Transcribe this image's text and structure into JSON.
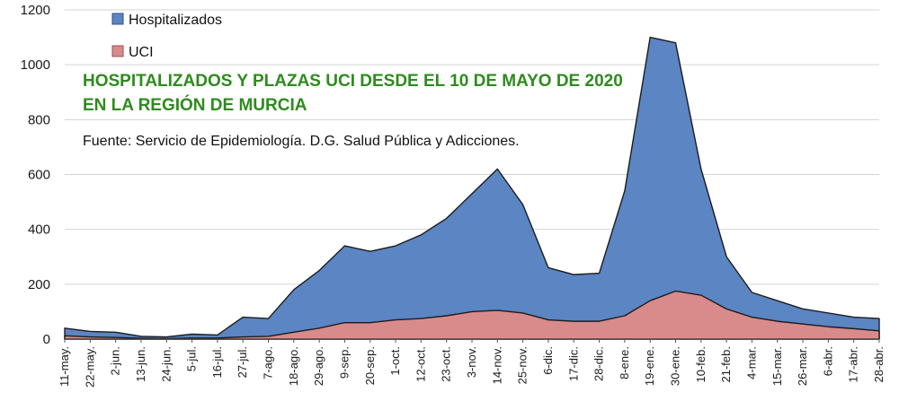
{
  "chart_data": {
    "type": "area",
    "title_lines": [
      "HOSPITALIZADOS Y PLAZAS UCI DESDE EL 10 DE MAYO DE 2020",
      "EN LA REGIÓN DE MURCIA"
    ],
    "source": "Fuente: Servicio de Epidemiología. D.G. Salud Pública y Adicciones.",
    "xlabel": "",
    "ylabel": "",
    "ylim": [
      0,
      1200
    ],
    "yticks": [
      0,
      200,
      400,
      600,
      800,
      1000,
      1200
    ],
    "grid": true,
    "legend": "top-left",
    "categories": [
      "11-may.",
      "22-may.",
      "2-jun.",
      "13-jun.",
      "24-jun.",
      "5-jul.",
      "16-jul.",
      "27-jul.",
      "7-ago.",
      "18-ago.",
      "29-ago.",
      "9-sep.",
      "20-sep.",
      "1-oct.",
      "12-oct.",
      "23-oct.",
      "3-nov.",
      "14-nov.",
      "25-nov.",
      "6-dic.",
      "17-dic.",
      "28-dic.",
      "8-ene.",
      "19-ene.",
      "30-ene.",
      "10-feb.",
      "21-feb.",
      "4-mar.",
      "15-mar.",
      "26-mar.",
      "6-abr.",
      "17-abr.",
      "28-abr."
    ],
    "series": [
      {
        "name": "Hospitalizados",
        "color": "#5b85c3",
        "values": [
          40,
          28,
          25,
          10,
          8,
          18,
          15,
          80,
          75,
          180,
          250,
          340,
          320,
          340,
          380,
          440,
          530,
          620,
          490,
          260,
          235,
          240,
          540,
          1100,
          1080,
          620,
          300,
          170,
          140,
          110,
          95,
          80,
          75
        ]
      },
      {
        "name": "UCI",
        "color": "#d98a8a",
        "values": [
          12,
          8,
          6,
          3,
          2,
          4,
          4,
          8,
          10,
          25,
          40,
          60,
          60,
          70,
          75,
          85,
          100,
          105,
          95,
          70,
          65,
          65,
          85,
          140,
          175,
          160,
          110,
          80,
          65,
          55,
          45,
          38,
          30
        ]
      }
    ]
  }
}
